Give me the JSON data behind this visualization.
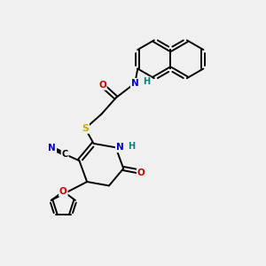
{
  "background_color": "#f0f0f0",
  "atom_colors": {
    "C": "#000000",
    "N": "#0000cc",
    "O": "#cc0000",
    "S": "#ccaa00",
    "H": "#008080"
  },
  "figsize": [
    3.0,
    3.0
  ],
  "dpi": 100
}
